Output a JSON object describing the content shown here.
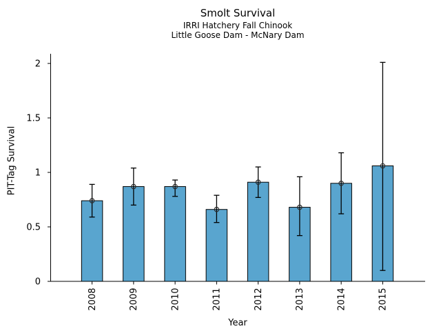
{
  "chart_data": {
    "type": "bar",
    "title": "Smolt Survival",
    "subtitle_lines": [
      "IRRI Hatchery Fall Chinook",
      "Little Goose Dam - McNary Dam"
    ],
    "xlabel": "Year",
    "ylabel": "PIT-Tag Survival",
    "categories": [
      "2008",
      "2009",
      "2010",
      "2011",
      "2012",
      "2013",
      "2014",
      "2015"
    ],
    "values": [
      0.74,
      0.87,
      0.87,
      0.66,
      0.91,
      0.68,
      0.9,
      1.06
    ],
    "error_low": [
      0.59,
      0.7,
      0.78,
      0.54,
      0.77,
      0.42,
      0.62,
      0.1
    ],
    "error_high": [
      0.89,
      1.04,
      0.93,
      0.79,
      1.05,
      0.96,
      1.18,
      2.01
    ],
    "yticks": {
      "values": [
        0,
        0.5,
        1,
        1.5,
        2
      ],
      "labels": [
        "0",
        "0.5",
        "1",
        "1.5",
        "2"
      ]
    },
    "ylim": [
      0,
      2.09
    ],
    "grid": false,
    "legend": null,
    "marker": "open-circle",
    "error_caps": true,
    "colors": {
      "bar_fill": "#59a5cf",
      "bar_edge": "#000000",
      "errorbar": "#000000",
      "marker_edge": "#2a2a2a",
      "axis": "#000000",
      "text": "#000000",
      "background": "#ffffff"
    }
  }
}
